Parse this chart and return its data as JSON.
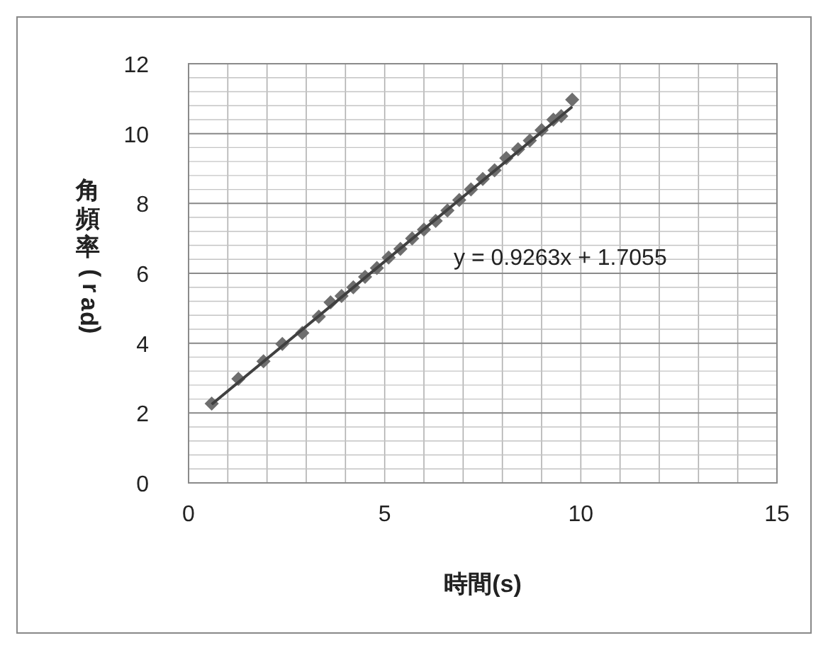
{
  "chart_data": {
    "type": "scatter",
    "xlabel": "時間(s)",
    "ylabel": "角頻率(rad)",
    "xlim": [
      0,
      15
    ],
    "xticks": [
      0,
      5,
      10,
      15
    ],
    "ylim": [
      0,
      12
    ],
    "yticks": [
      0,
      2,
      4,
      6,
      8,
      10,
      12
    ],
    "grid": true,
    "series": [
      {
        "color": "#6e6e6e",
        "marker": "diamond",
        "x": [
          0.59,
          1.27,
          1.91,
          2.39,
          2.9,
          3.32,
          3.62,
          3.9,
          4.2,
          4.5,
          4.8,
          5.1,
          5.4,
          5.7,
          6.0,
          6.3,
          6.6,
          6.9,
          7.2,
          7.5,
          7.8,
          8.1,
          8.4,
          8.7,
          9.0,
          9.3,
          9.5,
          9.78
        ],
        "values": [
          2.27,
          2.98,
          3.48,
          3.98,
          4.29,
          4.76,
          5.17,
          5.35,
          5.6,
          5.9,
          6.15,
          6.45,
          6.7,
          7.0,
          7.25,
          7.5,
          7.8,
          8.1,
          8.4,
          8.7,
          8.95,
          9.3,
          9.55,
          9.8,
          10.1,
          10.4,
          10.5,
          10.97
        ]
      },
      {
        "type": "line",
        "color": "#404040",
        "line_style": "solid",
        "marker": "none",
        "x": [
          0.59,
          9.78
        ],
        "values": [
          2.25,
          10.77
        ]
      }
    ],
    "annotations": [
      "y = 0.9263x + 1.7055"
    ]
  }
}
